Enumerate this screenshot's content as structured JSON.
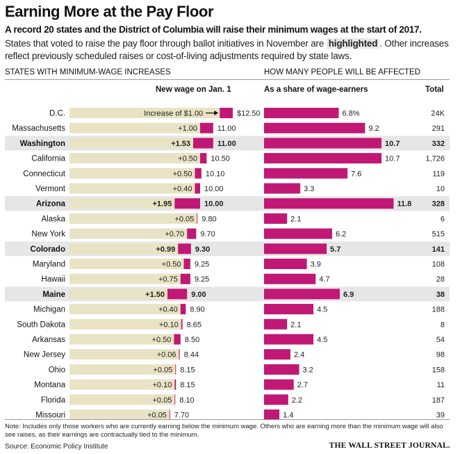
{
  "header": {
    "title": "Earning More at the Pay Floor",
    "subtitle": "A record 20 states and the District of Columbia will raise their minimum wages at the start of 2017.",
    "desc_part1": "States that voted to raise the pay floor through ballot initiatives in November are ",
    "desc_highlight": "highlighted",
    "desc_part2": ". Other increases reflect previously scheduled raises or cost-of-living adjustments required by state laws."
  },
  "sections": {
    "left": "STATES WITH MINIMUM-WAGE INCREASES",
    "right": "HOW MANY PEOPLE WILL BE AFFECTED"
  },
  "columns": {
    "new_wage": "New wage on Jan. 1",
    "share": "As a share of wage-earners",
    "total": "Total"
  },
  "colors": {
    "magenta": "#c01874",
    "beige": "#e8e3c4",
    "highlight_row": "#e6e6e6"
  },
  "chart_data": {
    "type": "bar",
    "first_increase_label": "Increase of $1.00",
    "rows": [
      {
        "state": "D.C.",
        "highlighted": false,
        "increase": "$1.00",
        "new_wage": 12.5,
        "new_wage_label": "$12.50",
        "share": 6.8,
        "share_label": "6.8%",
        "total": "24K"
      },
      {
        "state": "Massachusetts",
        "highlighted": false,
        "increase": "+1.00",
        "new_wage": 11.0,
        "new_wage_label": "11.00",
        "share": 9.2,
        "share_label": "9.2",
        "total": "291"
      },
      {
        "state": "Washington",
        "highlighted": true,
        "increase": "+1.53",
        "new_wage": 11.0,
        "new_wage_label": "11.00",
        "share": 10.7,
        "share_label": "10.7",
        "total": "332"
      },
      {
        "state": "California",
        "highlighted": false,
        "increase": "+0.50",
        "new_wage": 10.5,
        "new_wage_label": "10.50",
        "share": 10.7,
        "share_label": "10.7",
        "total": "1,726"
      },
      {
        "state": "Connecticut",
        "highlighted": false,
        "increase": "+0.50",
        "new_wage": 10.1,
        "new_wage_label": "10.10",
        "share": 7.6,
        "share_label": "7.6",
        "total": "119"
      },
      {
        "state": "Vermont",
        "highlighted": false,
        "increase": "+0.40",
        "new_wage": 10.0,
        "new_wage_label": "10.00",
        "share": 3.3,
        "share_label": "3.3",
        "total": "10"
      },
      {
        "state": "Arizona",
        "highlighted": true,
        "increase": "+1.95",
        "new_wage": 10.0,
        "new_wage_label": "10.00",
        "share": 11.8,
        "share_label": "11.8",
        "total": "328"
      },
      {
        "state": "Alaska",
        "highlighted": false,
        "increase": "+0.05",
        "new_wage": 9.8,
        "new_wage_label": "9.80",
        "share": 2.1,
        "share_label": "2.1",
        "total": "6"
      },
      {
        "state": "New York",
        "highlighted": false,
        "increase": "+0.70",
        "new_wage": 9.7,
        "new_wage_label": "9.70",
        "share": 6.2,
        "share_label": "6.2",
        "total": "515"
      },
      {
        "state": "Colorado",
        "highlighted": true,
        "increase": "+0.99",
        "new_wage": 9.3,
        "new_wage_label": "9.30",
        "share": 5.7,
        "share_label": "5.7",
        "total": "141"
      },
      {
        "state": "Maryland",
        "highlighted": false,
        "increase": "+0.50",
        "new_wage": 9.25,
        "new_wage_label": "9.25",
        "share": 3.9,
        "share_label": "3.9",
        "total": "108"
      },
      {
        "state": "Hawaii",
        "highlighted": false,
        "increase": "+0.75",
        "new_wage": 9.25,
        "new_wage_label": "9.25",
        "share": 4.7,
        "share_label": "4.7",
        "total": "28"
      },
      {
        "state": "Maine",
        "highlighted": true,
        "increase": "+1.50",
        "new_wage": 9.0,
        "new_wage_label": "9.00",
        "share": 6.9,
        "share_label": "6.9",
        "total": "38"
      },
      {
        "state": "Michigan",
        "highlighted": false,
        "increase": "+0.40",
        "new_wage": 8.9,
        "new_wage_label": "8.90",
        "share": 4.5,
        "share_label": "4.5",
        "total": "188"
      },
      {
        "state": "South Dakota",
        "highlighted": false,
        "increase": "+0.10",
        "new_wage": 8.65,
        "new_wage_label": "8.65",
        "share": 2.1,
        "share_label": "2.1",
        "total": "8"
      },
      {
        "state": "Arkansas",
        "highlighted": false,
        "increase": "+0.50",
        "new_wage": 8.5,
        "new_wage_label": "8.50",
        "share": 4.5,
        "share_label": "4.5",
        "total": "54"
      },
      {
        "state": "New Jersey",
        "highlighted": false,
        "increase": "+0.06",
        "new_wage": 8.44,
        "new_wage_label": "8.44",
        "share": 2.4,
        "share_label": "2.4",
        "total": "98"
      },
      {
        "state": "Ohio",
        "highlighted": false,
        "increase": "+0.05",
        "new_wage": 8.15,
        "new_wage_label": "8.15",
        "share": 3.2,
        "share_label": "3.2",
        "total": "158"
      },
      {
        "state": "Montana",
        "highlighted": false,
        "increase": "+0.10",
        "new_wage": 8.15,
        "new_wage_label": "8.15",
        "share": 2.7,
        "share_label": "2.7",
        "total": "11"
      },
      {
        "state": "Florida",
        "highlighted": false,
        "increase": "+0.05",
        "new_wage": 8.1,
        "new_wage_label": "8.10",
        "share": 2.2,
        "share_label": "2.2",
        "total": "187"
      },
      {
        "state": "Missouri",
        "highlighted": false,
        "increase": "+0.05",
        "new_wage": 7.7,
        "new_wage_label": "7.70",
        "share": 1.4,
        "share_label": "1.4",
        "total": "39"
      }
    ]
  },
  "footer": {
    "note": "Note: Includes only those workers who are currently earning below the minimum wage. Others who are earning more than the minimum wage will also see raises, as their earnings are contractually tied to the minimum.",
    "source": "Source: Economic Policy Institute",
    "brand": "THE WALL STREET JOURNAL."
  }
}
